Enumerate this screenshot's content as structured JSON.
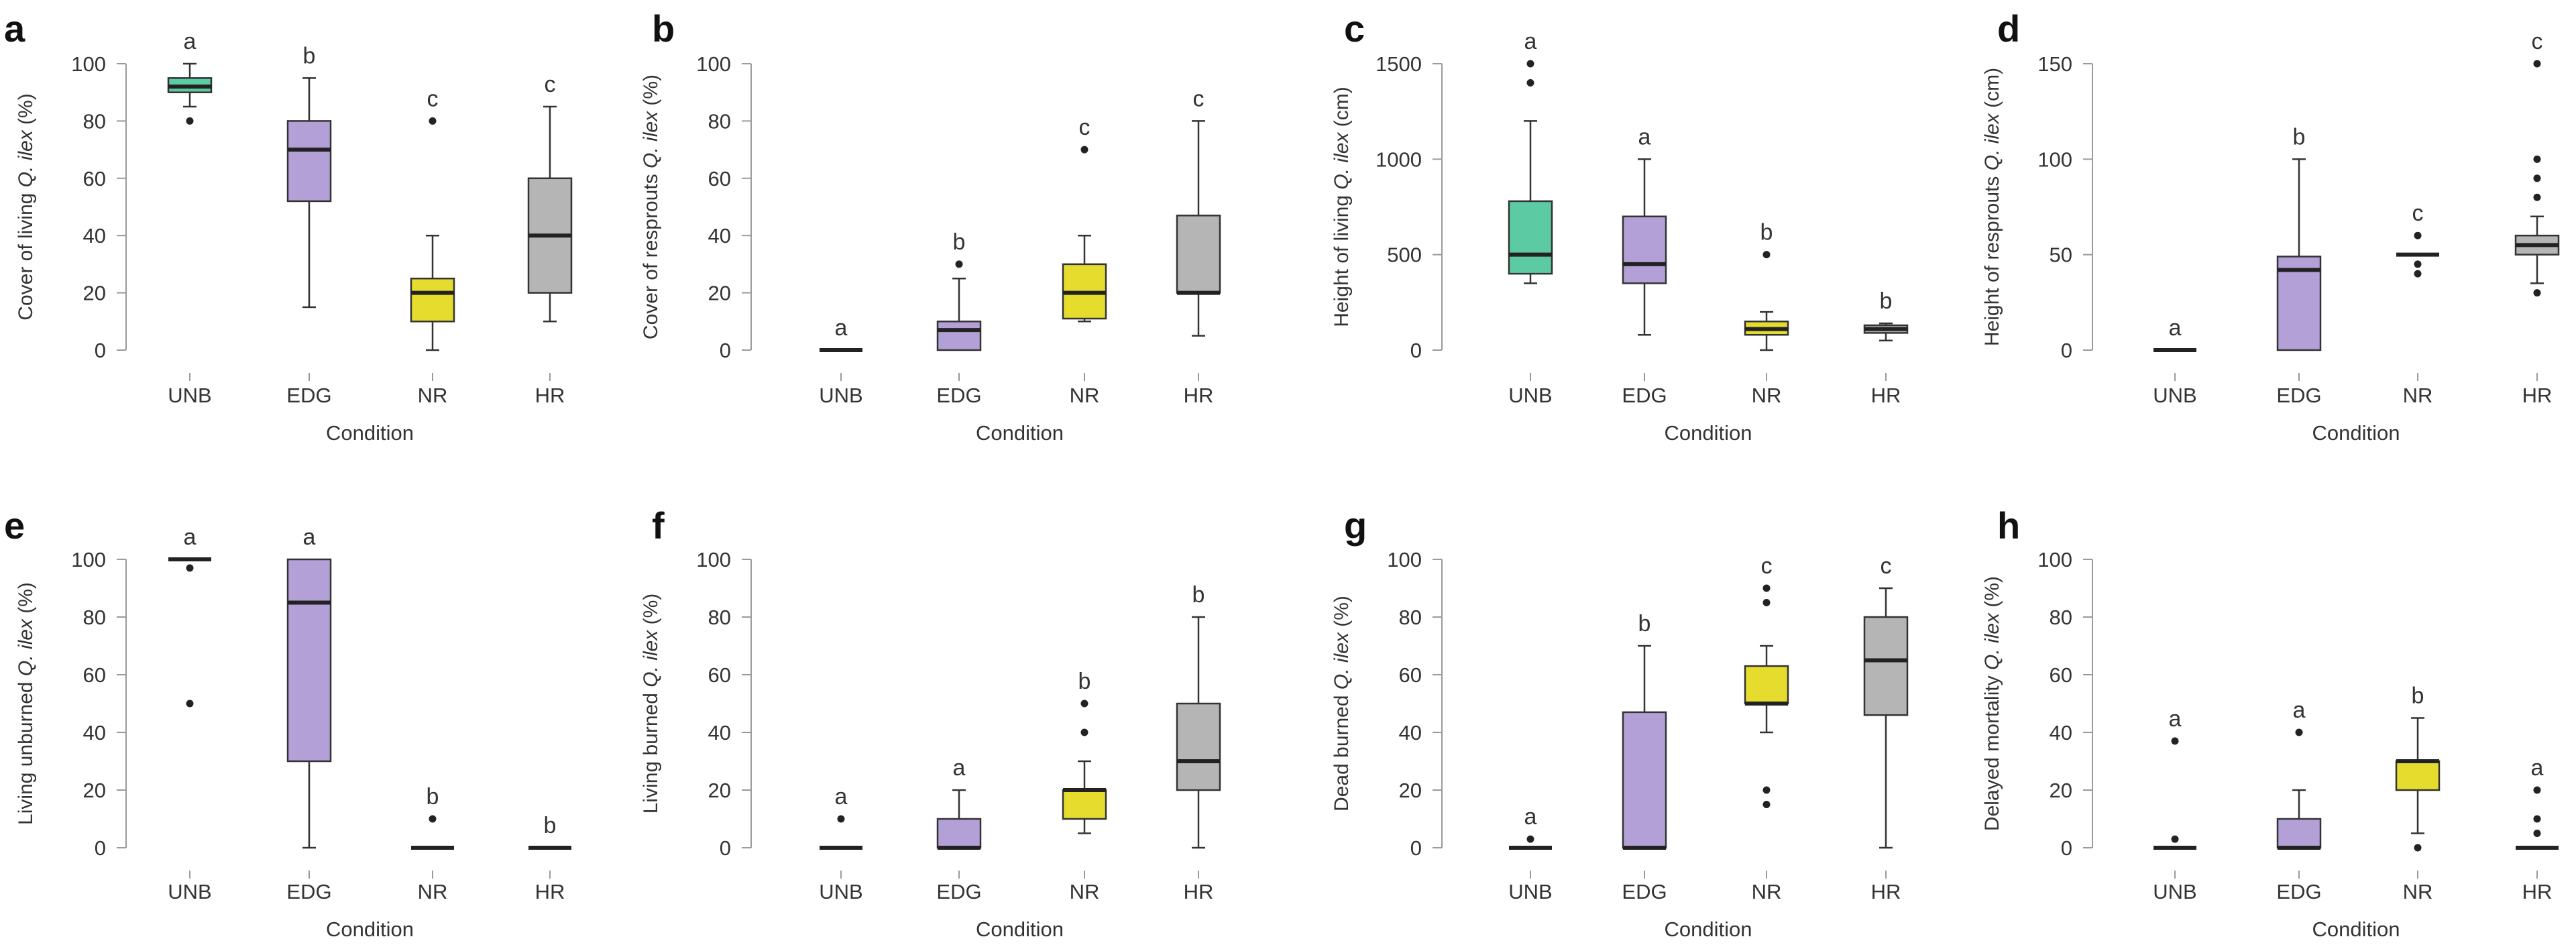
{
  "chart_data": [
    {
      "type": "box",
      "panel": "a",
      "xlabel": "Condition",
      "ylabel_parts": [
        "Cover of living ",
        "Q. ilex",
        " (%)"
      ],
      "ylim": [
        0,
        100
      ],
      "yticks": [
        0,
        20,
        40,
        60,
        80,
        100
      ],
      "categories": [
        "UNB",
        "EDG",
        "NR",
        "HR"
      ],
      "boxes": [
        {
          "name": "UNB",
          "low": 85,
          "q1": 90,
          "median": 92,
          "q3": 95,
          "high": 100,
          "outliers": [
            80
          ],
          "letter": "a",
          "color": "#5ccaa2"
        },
        {
          "name": "EDG",
          "low": 15,
          "q1": 52,
          "median": 70,
          "q3": 80,
          "high": 95,
          "outliers": [],
          "letter": "b",
          "color": "#b3a0d6"
        },
        {
          "name": "NR",
          "low": 0,
          "q1": 10,
          "median": 20,
          "q3": 25,
          "high": 40,
          "outliers": [
            80
          ],
          "letter": "c",
          "color": "#e5dc2e"
        },
        {
          "name": "HR",
          "low": 10,
          "q1": 20,
          "median": 40,
          "q3": 60,
          "high": 85,
          "outliers": [],
          "letter": "c",
          "color": "#b5b5b5"
        }
      ]
    },
    {
      "type": "box",
      "panel": "b",
      "xlabel": "Condition",
      "ylabel_parts": [
        "Cover of resprouts ",
        "Q. ilex",
        " (%)"
      ],
      "ylim": [
        0,
        100
      ],
      "yticks": [
        0,
        20,
        40,
        60,
        80,
        100
      ],
      "categories": [
        "UNB",
        "EDG",
        "NR",
        "HR"
      ],
      "boxes": [
        {
          "name": "UNB",
          "low": 0,
          "q1": 0,
          "median": 0,
          "q3": 0,
          "high": 0,
          "outliers": [],
          "letter": "a",
          "color": "#5ccaa2"
        },
        {
          "name": "EDG",
          "low": 0,
          "q1": 0,
          "median": 7,
          "q3": 10,
          "high": 25,
          "outliers": [
            30
          ],
          "letter": "b",
          "color": "#b3a0d6"
        },
        {
          "name": "NR",
          "low": 10,
          "q1": 11,
          "median": 20,
          "q3": 30,
          "high": 40,
          "outliers": [
            70
          ],
          "letter": "c",
          "color": "#e5dc2e"
        },
        {
          "name": "HR",
          "low": 5,
          "q1": 20,
          "median": 20,
          "q3": 47,
          "high": 80,
          "outliers": [],
          "letter": "c",
          "color": "#b5b5b5"
        }
      ]
    },
    {
      "type": "box",
      "panel": "c",
      "xlabel": "Condition",
      "ylabel_parts": [
        "Height of living ",
        "Q. ilex",
        " (cm)"
      ],
      "ylim": [
        0,
        1500
      ],
      "yticks": [
        0,
        500,
        1000,
        1500
      ],
      "categories": [
        "UNB",
        "EDG",
        "NR",
        "HR"
      ],
      "boxes": [
        {
          "name": "UNB",
          "low": 350,
          "q1": 400,
          "median": 500,
          "q3": 780,
          "high": 1200,
          "outliers": [
            1400,
            1500
          ],
          "letter": "a",
          "color": "#5ccaa2"
        },
        {
          "name": "EDG",
          "low": 80,
          "q1": 350,
          "median": 450,
          "q3": 700,
          "high": 1000,
          "outliers": [],
          "letter": "a",
          "color": "#b3a0d6"
        },
        {
          "name": "NR",
          "low": 0,
          "q1": 80,
          "median": 110,
          "q3": 150,
          "high": 200,
          "outliers": [
            500
          ],
          "letter": "b",
          "color": "#e5dc2e"
        },
        {
          "name": "HR",
          "low": 50,
          "q1": 90,
          "median": 110,
          "q3": 130,
          "high": 140,
          "outliers": [],
          "letter": "b",
          "color": "#b5b5b5"
        }
      ]
    },
    {
      "type": "box",
      "panel": "d",
      "xlabel": "Condition",
      "ylabel_parts": [
        "Height of resprouts ",
        "Q. ilex",
        " (cm)"
      ],
      "ylim": [
        0,
        150
      ],
      "yticks": [
        0,
        50,
        100,
        150
      ],
      "categories": [
        "UNB",
        "EDG",
        "NR",
        "HR"
      ],
      "boxes": [
        {
          "name": "UNB",
          "low": 0,
          "q1": 0,
          "median": 0,
          "q3": 0,
          "high": 0,
          "outliers": [],
          "letter": "a",
          "color": "#5ccaa2"
        },
        {
          "name": "EDG",
          "low": 0,
          "q1": 0,
          "median": 42,
          "q3": 49,
          "high": 100,
          "outliers": [],
          "letter": "b",
          "color": "#b3a0d6"
        },
        {
          "name": "NR",
          "low": 50,
          "q1": 50,
          "median": 50,
          "q3": 50,
          "high": 50,
          "outliers": [
            40,
            45,
            60
          ],
          "letter": "c",
          "color": "#e5dc2e"
        },
        {
          "name": "HR",
          "low": 35,
          "q1": 50,
          "median": 55,
          "q3": 60,
          "high": 70,
          "outliers": [
            30,
            80,
            90,
            100,
            150
          ],
          "letter": "c",
          "color": "#b5b5b5"
        }
      ]
    },
    {
      "type": "box",
      "panel": "e",
      "xlabel": "Condition",
      "ylabel_parts": [
        "Living unburned ",
        "Q. ilex",
        " (%)"
      ],
      "ylim": [
        0,
        100
      ],
      "yticks": [
        0,
        20,
        40,
        60,
        80,
        100
      ],
      "categories": [
        "UNB",
        "EDG",
        "NR",
        "HR"
      ],
      "boxes": [
        {
          "name": "UNB",
          "low": 100,
          "q1": 100,
          "median": 100,
          "q3": 100,
          "high": 100,
          "outliers": [
            97,
            50
          ],
          "letter": "a",
          "color": "#5ccaa2"
        },
        {
          "name": "EDG",
          "low": 0,
          "q1": 30,
          "median": 85,
          "q3": 100,
          "high": 100,
          "outliers": [],
          "letter": "a",
          "color": "#b3a0d6"
        },
        {
          "name": "NR",
          "low": 0,
          "q1": 0,
          "median": 0,
          "q3": 0,
          "high": 0,
          "outliers": [
            10
          ],
          "letter": "b",
          "color": "#e5dc2e"
        },
        {
          "name": "HR",
          "low": 0,
          "q1": 0,
          "median": 0,
          "q3": 0,
          "high": 0,
          "outliers": [],
          "letter": "b",
          "color": "#b5b5b5"
        }
      ]
    },
    {
      "type": "box",
      "panel": "f",
      "xlabel": "Condition",
      "ylabel_parts": [
        "Living burned ",
        "Q. ilex",
        " (%)"
      ],
      "ylim": [
        0,
        100
      ],
      "yticks": [
        0,
        20,
        40,
        60,
        80,
        100
      ],
      "categories": [
        "UNB",
        "EDG",
        "NR",
        "HR"
      ],
      "boxes": [
        {
          "name": "UNB",
          "low": 0,
          "q1": 0,
          "median": 0,
          "q3": 0,
          "high": 0,
          "outliers": [
            10
          ],
          "letter": "a",
          "color": "#5ccaa2"
        },
        {
          "name": "EDG",
          "low": 0,
          "q1": 0,
          "median": 0,
          "q3": 10,
          "high": 20,
          "outliers": [],
          "letter": "a",
          "color": "#b3a0d6"
        },
        {
          "name": "NR",
          "low": 5,
          "q1": 10,
          "median": 20,
          "q3": 20,
          "high": 30,
          "outliers": [
            40,
            50
          ],
          "letter": "b",
          "color": "#e5dc2e"
        },
        {
          "name": "HR",
          "low": 0,
          "q1": 20,
          "median": 30,
          "q3": 50,
          "high": 80,
          "outliers": [],
          "letter": "b",
          "color": "#b5b5b5"
        }
      ]
    },
    {
      "type": "box",
      "panel": "g",
      "xlabel": "Condition",
      "ylabel_parts": [
        "Dead burned ",
        "Q. ilex",
        " (%)"
      ],
      "ylim": [
        0,
        100
      ],
      "yticks": [
        0,
        20,
        40,
        60,
        80,
        100
      ],
      "categories": [
        "UNB",
        "EDG",
        "NR",
        "HR"
      ],
      "boxes": [
        {
          "name": "UNB",
          "low": 0,
          "q1": 0,
          "median": 0,
          "q3": 0,
          "high": 0,
          "outliers": [
            3
          ],
          "letter": "a",
          "color": "#5ccaa2"
        },
        {
          "name": "EDG",
          "low": 0,
          "q1": 0,
          "median": 0,
          "q3": 47,
          "high": 70,
          "outliers": [],
          "letter": "b",
          "color": "#b3a0d6"
        },
        {
          "name": "NR",
          "low": 40,
          "q1": 50,
          "median": 50,
          "q3": 63,
          "high": 70,
          "outliers": [
            15,
            20,
            85,
            90
          ],
          "letter": "c",
          "color": "#e5dc2e"
        },
        {
          "name": "HR",
          "low": 0,
          "q1": 46,
          "median": 65,
          "q3": 80,
          "high": 90,
          "outliers": [],
          "letter": "c",
          "color": "#b5b5b5"
        }
      ]
    },
    {
      "type": "box",
      "panel": "h",
      "xlabel": "Condition",
      "ylabel_parts": [
        "Delayed mortality ",
        "Q. ilex",
        " (%)"
      ],
      "ylim": [
        0,
        100
      ],
      "yticks": [
        0,
        20,
        40,
        60,
        80,
        100
      ],
      "categories": [
        "UNB",
        "EDG",
        "NR",
        "HR"
      ],
      "boxes": [
        {
          "name": "UNB",
          "low": 0,
          "q1": 0,
          "median": 0,
          "q3": 0,
          "high": 0,
          "outliers": [
            3,
            37
          ],
          "letter": "a",
          "color": "#5ccaa2"
        },
        {
          "name": "EDG",
          "low": 0,
          "q1": 0,
          "median": 0,
          "q3": 10,
          "high": 20,
          "outliers": [
            40
          ],
          "letter": "a",
          "color": "#b3a0d6"
        },
        {
          "name": "NR",
          "low": 5,
          "q1": 20,
          "median": 30,
          "q3": 30,
          "high": 45,
          "outliers": [
            0
          ],
          "letter": "b",
          "color": "#e5dc2e"
        },
        {
          "name": "HR",
          "low": 0,
          "q1": 0,
          "median": 0,
          "q3": 0,
          "high": 0,
          "outliers": [
            5,
            10,
            20
          ],
          "letter": "a",
          "color": "#b5b5b5"
        }
      ]
    }
  ]
}
